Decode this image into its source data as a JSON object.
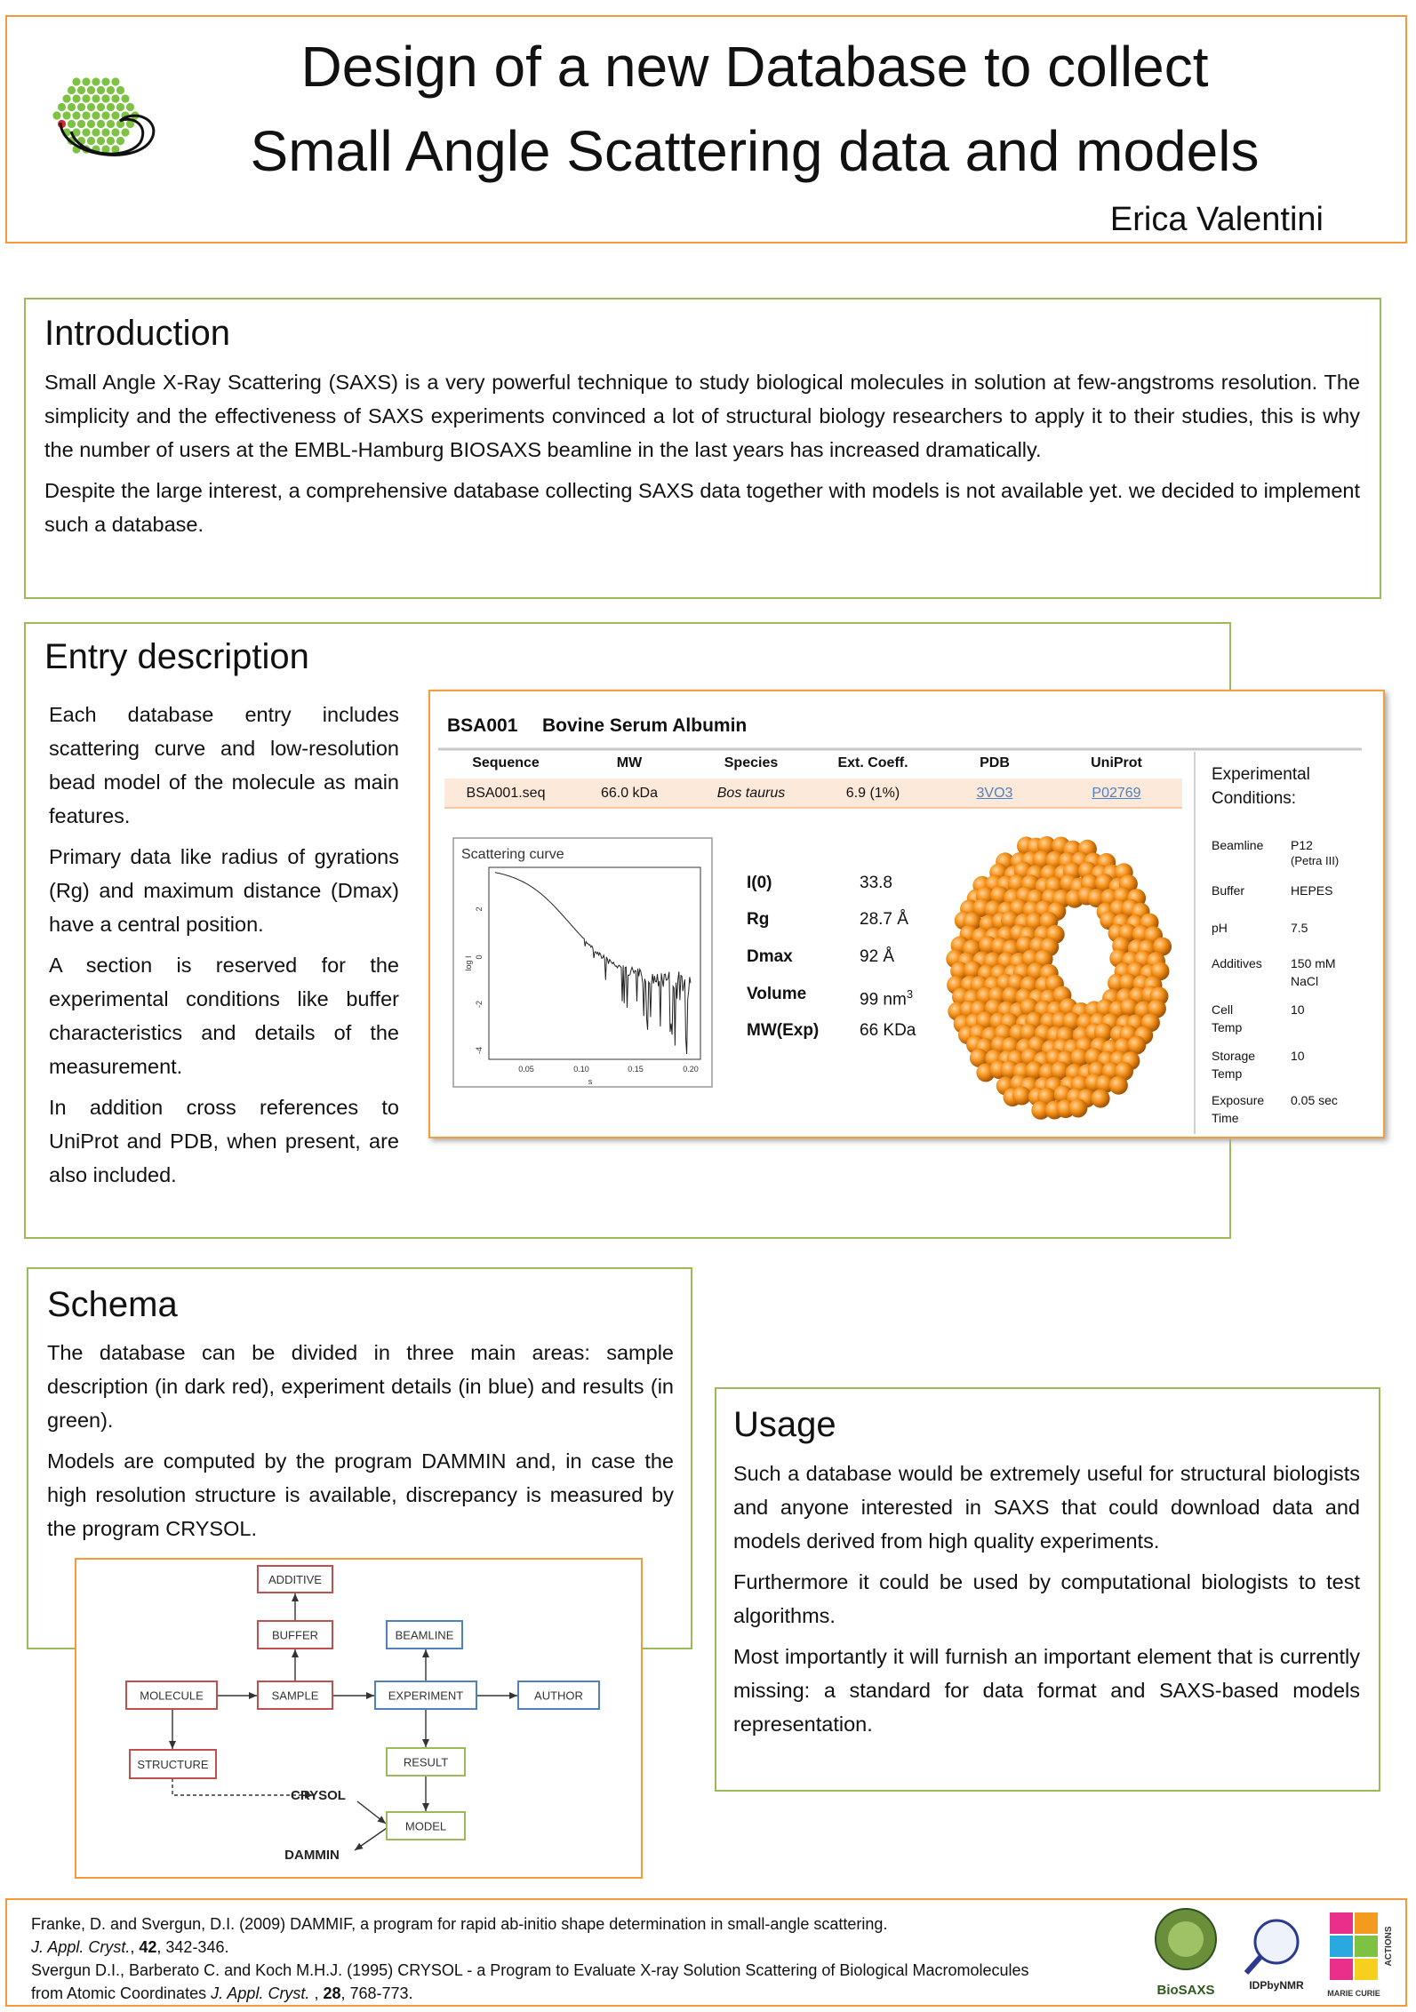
{
  "header": {
    "title_lines": [
      "Design of a new Database to collect",
      "Small Angle Scattering data and models"
    ],
    "author": "Erica Valentini"
  },
  "introduction": {
    "heading": "Introduction",
    "paragraphs": [
      "Small Angle X-Ray Scattering (SAXS) is a very powerful technique to study biological molecules in solution at few-angstroms resolution. The simplicity and the effectiveness of SAXS experiments convinced a lot of structural biology researchers to apply it to their studies, this is why the number of users at the EMBL-Hamburg BIOSAXS beamline in the last years has increased dramatically.",
      "Despite the large interest, a comprehensive database collecting SAXS data together with models is not available yet.  we decided to implement such a database."
    ]
  },
  "entry_description": {
    "heading": "Entry description",
    "paragraphs": [
      "Each database entry includes scattering curve and low-resolution bead model of the molecule as main features.",
      "Primary data like radius of gyrations (Rg) and maximum distance (Dmax) have a central position.",
      "A section is reserved for the experimental conditions like buffer characteristics and details of the measurement.",
      "In addition cross references to UniProt and PDB, when present, are also included."
    ],
    "card": {
      "id": "BSA001",
      "name": "Bovine Serum Albumin",
      "table": {
        "headers": [
          "Sequence",
          "MW",
          "Species",
          "Ext. Coeff.",
          "PDB",
          "UniProt"
        ],
        "row": [
          "BSA001.seq",
          "66.0 kDa",
          "Bos taurus",
          "6.9 (1%)",
          "3VO3",
          "P02769"
        ]
      },
      "plot": {
        "title": "Scattering curve",
        "yticks": [
          "2",
          "0",
          "-2",
          "-4"
        ],
        "xticks": [
          "0.05",
          "0.10",
          "0.15",
          "0.20"
        ],
        "xlabel": "s",
        "ylabel": "log I"
      },
      "properties": [
        {
          "label": "I(0)",
          "value": "33.8"
        },
        {
          "label": "Rg",
          "value": "28.7 Å"
        },
        {
          "label": "Dmax",
          "value": "92  Å"
        },
        {
          "label": "Volume",
          "value": "99  nm",
          "sup": "3"
        },
        {
          "label": "MW(Exp)",
          "value": "66 KDa"
        }
      ],
      "conditions": {
        "heading": "Experimental Conditions:",
        "rows": [
          {
            "label": "Beamline",
            "value": "P12",
            "note": "(Petra III)"
          },
          {
            "label": "Buffer",
            "value": "HEPES"
          },
          {
            "label": "pH",
            "value": "7.5"
          },
          {
            "label": "Additives",
            "value": "150 mM NaCl"
          },
          {
            "label": "Cell Temp",
            "value": "10"
          },
          {
            "label": "Storage Temp",
            "value": "10"
          },
          {
            "label": "Exposure Time",
            "value": "0.05 sec"
          }
        ]
      }
    }
  },
  "schema": {
    "heading": "Schema",
    "paragraphs": [
      "The database can be divided in three main areas: sample description (in dark red), experiment details (in blue) and results (in green).",
      "Models are computed by the program DAMMIN and, in case the high resolution structure is available, discrepancy is measured by the program CRYSOL."
    ],
    "diagram": {
      "nodes": [
        {
          "label": "ADDITIVE",
          "color": "#c0504d"
        },
        {
          "label": "BUFFER",
          "color": "#c0504d"
        },
        {
          "label": "BEAMLINE",
          "color": "#4f81bd"
        },
        {
          "label": "MOLECULE",
          "color": "#c0504d"
        },
        {
          "label": "SAMPLE",
          "color": "#c0504d"
        },
        {
          "label": "EXPERIMENT",
          "color": "#4f81bd"
        },
        {
          "label": "AUTHOR",
          "color": "#4f81bd"
        },
        {
          "label": "STRUCTURE",
          "color": "#c0504d"
        },
        {
          "label": "RESULT",
          "color": "#9bbb59"
        },
        {
          "label": "MODEL",
          "color": "#9bbb59"
        }
      ],
      "programs": [
        "CRYSOL",
        "DAMMIN"
      ]
    }
  },
  "usage": {
    "heading": "Usage",
    "paragraphs": [
      "Such a database  would be extremely useful for structural biologists and anyone interested in SAXS that could download data and models derived from high quality experiments.",
      "Furthermore it could be used by computational biologists to test algorithms.",
      "Most importantly it will furnish an important element that is currently missing: a standard for data format and SAXS-based models representation."
    ]
  },
  "references": [
    [
      [
        {
          "text": "Franke, D. and Svergun, D.I. (2009) DAMMIF, a program for rapid ab-initio shape determination in small-angle scattering.",
          "style": "normal"
        }
      ],
      [
        {
          "text": "J. Appl. Cryst.",
          "style": "italic"
        },
        {
          "text": ", ",
          "style": "normal"
        },
        {
          "text": "42",
          "style": "bold"
        },
        {
          "text": ", 342-346.",
          "style": "normal"
        }
      ]
    ],
    [
      [
        {
          "text": "Svergun D.I., Barberato C. and Koch M.H.J. (1995) CRYSOL - a Program to Evaluate X-ray Solution Scattering of Biological Macromolecules",
          "style": "normal"
        }
      ],
      [
        {
          "text": "from Atomic Coordinates ",
          "style": "normal"
        },
        {
          "text": "J. Appl. Cryst.",
          "style": "italic"
        },
        {
          "text": " , ",
          "style": "normal"
        },
        {
          "text": "28",
          "style": "bold"
        },
        {
          "text": ", 768-773.",
          "style": "normal"
        }
      ]
    ]
  ],
  "logos": [
    "BioSAXS",
    "IDPbyNMR",
    "MARIE CURIE",
    "ACTIONS"
  ]
}
